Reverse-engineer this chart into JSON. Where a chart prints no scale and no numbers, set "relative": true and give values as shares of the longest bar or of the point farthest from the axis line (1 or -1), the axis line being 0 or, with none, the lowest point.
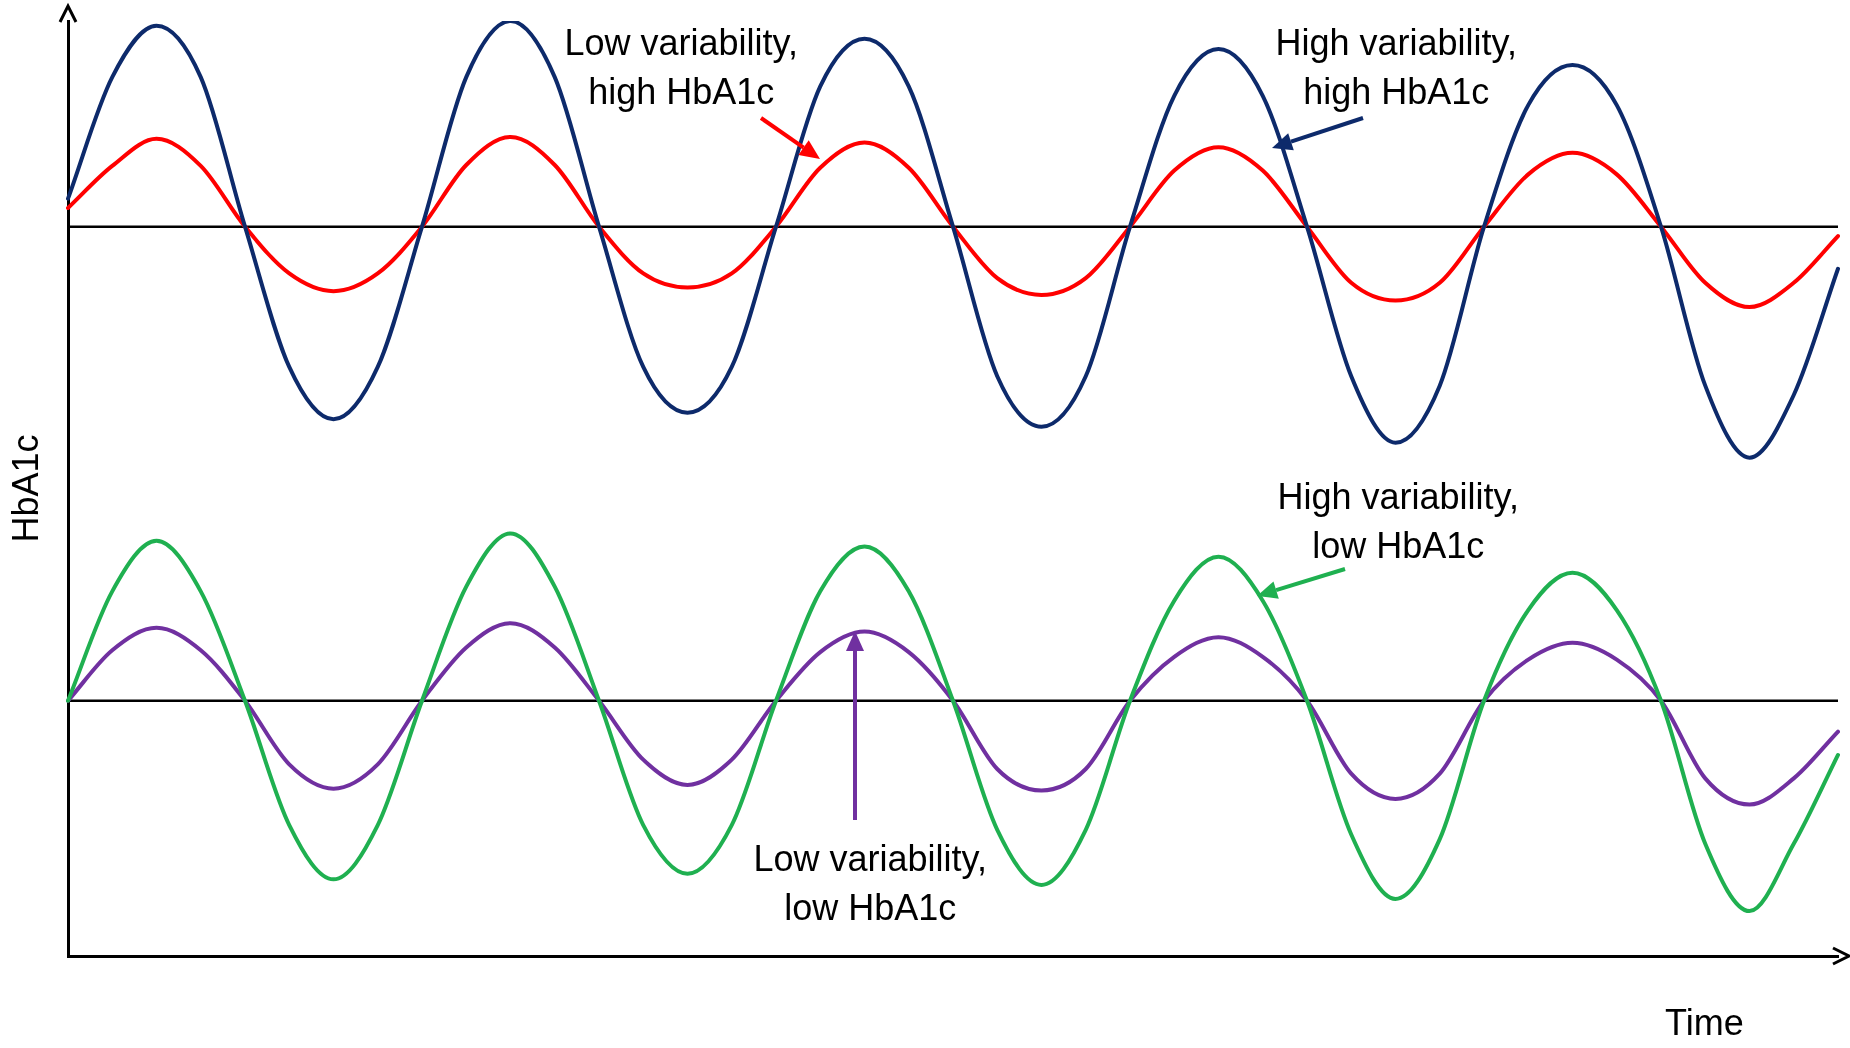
{
  "chart_data": {
    "type": "line",
    "relative": true,
    "xlabel": "Time",
    "ylabel": "HbA1c",
    "legend": false,
    "grid": false,
    "tick_labels": false,
    "categories": [
      null,
      null,
      null,
      null,
      null,
      null,
      null,
      null,
      null,
      null,
      null,
      null,
      null,
      null,
      null,
      null,
      null,
      null,
      null,
      null,
      null,
      null,
      null,
      null,
      null,
      null,
      null,
      null,
      null,
      null,
      null,
      null,
      null,
      null,
      null,
      null,
      null,
      null,
      null,
      null,
      null
    ],
    "series": [
      {
        "color": "#0d2a6b",
        "values": [
          0.81,
          0.94,
          0.995,
          0.94,
          0.78,
          0.63,
          0.574,
          0.63,
          0.78,
          0.94,
          1.0,
          0.94,
          0.78,
          0.63,
          0.581,
          0.63,
          0.78,
          0.93,
          0.981,
          0.93,
          0.78,
          0.62,
          0.566,
          0.62,
          0.78,
          0.92,
          0.97,
          0.92,
          0.78,
          0.62,
          0.549,
          0.61,
          0.78,
          0.91,
          0.953,
          0.91,
          0.78,
          0.61,
          0.533,
          0.6,
          0.735
        ]
      },
      {
        "color": "#ff0000",
        "values": [
          0.8,
          0.845,
          0.874,
          0.845,
          0.78,
          0.73,
          0.711,
          0.73,
          0.78,
          0.846,
          0.876,
          0.846,
          0.78,
          0.73,
          0.715,
          0.73,
          0.78,
          0.843,
          0.87,
          0.843,
          0.78,
          0.725,
          0.707,
          0.725,
          0.78,
          0.84,
          0.865,
          0.84,
          0.78,
          0.72,
          0.701,
          0.72,
          0.78,
          0.836,
          0.859,
          0.836,
          0.78,
          0.72,
          0.694,
          0.72,
          0.77
        ]
      },
      {
        "color": "#1fb050",
        "values": [
          0.273,
          0.39,
          0.444,
          0.39,
          0.273,
          0.14,
          0.082,
          0.14,
          0.273,
          0.395,
          0.452,
          0.395,
          0.273,
          0.14,
          0.088,
          0.14,
          0.273,
          0.39,
          0.438,
          0.39,
          0.273,
          0.135,
          0.076,
          0.135,
          0.273,
          0.38,
          0.427,
          0.38,
          0.273,
          0.13,
          0.061,
          0.125,
          0.273,
          0.37,
          0.41,
          0.37,
          0.273,
          0.12,
          0.048,
          0.12,
          0.215
        ]
      },
      {
        "color": "#7030a0",
        "values": [
          0.273,
          0.327,
          0.351,
          0.327,
          0.273,
          0.205,
          0.179,
          0.205,
          0.273,
          0.33,
          0.356,
          0.33,
          0.273,
          0.21,
          0.183,
          0.21,
          0.273,
          0.325,
          0.347,
          0.325,
          0.273,
          0.2,
          0.177,
          0.2,
          0.273,
          0.32,
          0.341,
          0.32,
          0.273,
          0.195,
          0.168,
          0.195,
          0.273,
          0.317,
          0.335,
          0.317,
          0.273,
          0.19,
          0.162,
          0.19,
          0.24
        ]
      }
    ],
    "ref_lines": [
      {
        "axis": "y",
        "value": 0.78,
        "color": "#000000"
      },
      {
        "axis": "y",
        "value": 0.273,
        "color": "#000000"
      }
    ],
    "annotations": [
      "Low variability,\nhigh HbA1c",
      "High variability,\nhigh HbA1c",
      "High variability,\nlow HbA1c",
      "Low variability,\nlow HbA1c"
    ]
  }
}
